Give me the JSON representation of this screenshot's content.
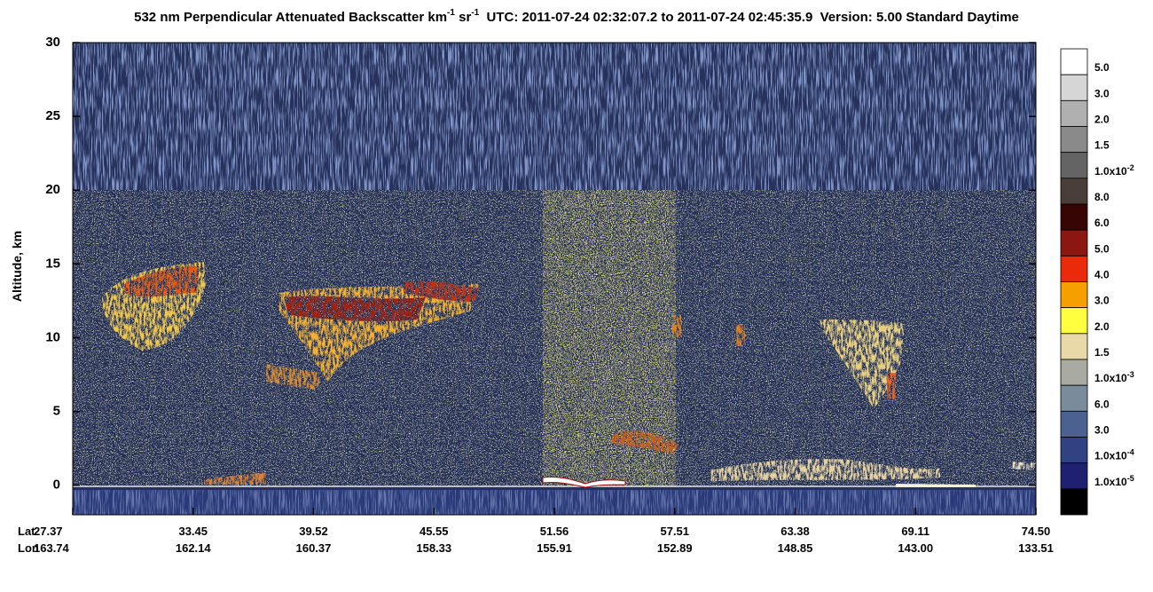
{
  "chart_data": {
    "type": "curtain",
    "title": [
      "532 nm Perpendicular Attenuated Backscatter km",
      "-1",
      " sr",
      "-1",
      "  UTC: 2011-07-24 02:32:07.2 to 2011-07-24 02:45:35.9  Version: 5.00 Standard Daytime"
    ],
    "ylabel": "Altitude, km",
    "ylim": [
      -2,
      30
    ],
    "yticks": [
      0,
      5,
      10,
      15,
      20,
      25,
      30
    ],
    "x_rows": [
      "Lat",
      "Lon"
    ],
    "lat": [
      27.37,
      33.45,
      39.52,
      45.55,
      51.56,
      57.51,
      63.38,
      69.11,
      {
        "value": 74.5,
        "label": "74.50"
      }
    ],
    "lon": [
      163.74,
      162.14,
      160.37,
      158.33,
      155.91,
      152.89,
      148.85,
      {
        "value": 143,
        "label": "143.00"
      },
      133.51
    ],
    "colorbar": [
      {
        "color": "#ffffff",
        "label": "5.0"
      },
      {
        "color": "#d6d6d6",
        "label": "3.0"
      },
      {
        "color": "#b0b0b0",
        "label": "2.0"
      },
      {
        "color": "#8a8a8a",
        "label": "1.5"
      },
      {
        "color": "#646464",
        "label": "1.0x10",
        "exp": "-2"
      },
      {
        "color": "#4a3e3a",
        "label": "8.0"
      },
      {
        "color": "#380505",
        "label": "6.0"
      },
      {
        "color": "#8c1610",
        "label": "5.0"
      },
      {
        "color": "#ea2a0a",
        "label": "4.0"
      },
      {
        "color": "#f6a000",
        "label": "3.0"
      },
      {
        "color": "#ffff40",
        "label": "2.0"
      },
      {
        "color": "#e9d9a9",
        "label": "1.5"
      },
      {
        "color": "#a9aaa2",
        "label": "1.0x10",
        "exp": "-3"
      },
      {
        "color": "#7a8b9b",
        "label": "6.0"
      },
      {
        "color": "#4b6190",
        "label": "3.0"
      },
      {
        "color": "#304282",
        "label": "1.0x10",
        "exp": "-4"
      },
      {
        "color": "#202070",
        "label": "1.0x10",
        "exp": "-5"
      },
      {
        "color": "#000000"
      }
    ]
  }
}
